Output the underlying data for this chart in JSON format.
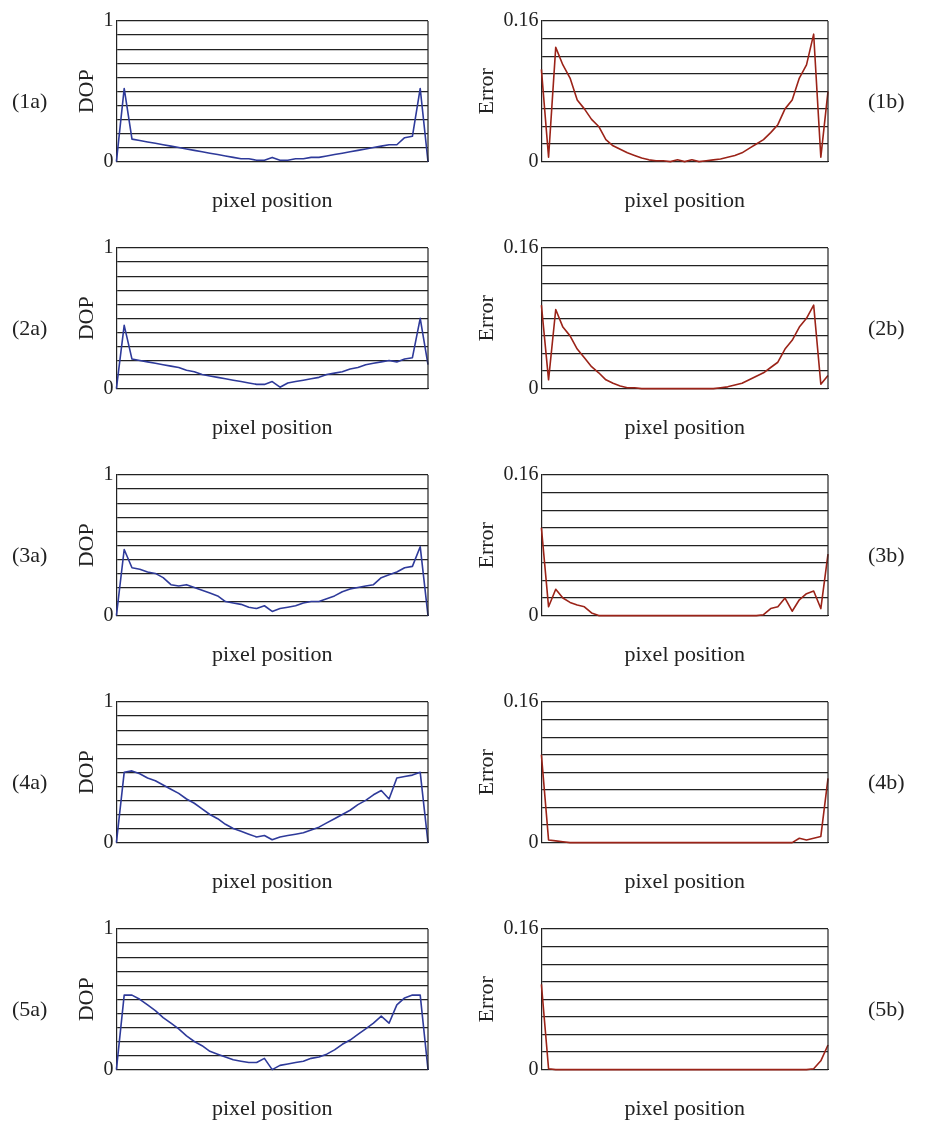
{
  "chart_data": [
    {
      "type": "line",
      "annotations": [
        "(1a)"
      ],
      "xlabel": "pixel position",
      "ylabel": "DOP",
      "categories": [
        null,
        null,
        null,
        null,
        null,
        null,
        null,
        null,
        null,
        null,
        null,
        null,
        null,
        null,
        null,
        null,
        null,
        null,
        null,
        null,
        null,
        null,
        null,
        null,
        null,
        null,
        null,
        null,
        null,
        null,
        null,
        null,
        null,
        null,
        null,
        null,
        null,
        null,
        null,
        null,
        null
      ],
      "color": "#2e3a9a",
      "values": [
        0,
        0.52,
        0.16,
        0.15,
        0.14,
        0.13,
        0.12,
        0.11,
        0.1,
        0.09,
        0.08,
        0.07,
        0.06,
        0.05,
        0.04,
        0.03,
        0.02,
        0.02,
        0.01,
        0.01,
        0.03,
        0.01,
        0.01,
        0.02,
        0.02,
        0.03,
        0.03,
        0.04,
        0.05,
        0.06,
        0.07,
        0.08,
        0.09,
        0.1,
        0.11,
        0.12,
        0.12,
        0.17,
        0.18,
        0.52,
        0
      ],
      "ylim": [
        0,
        1
      ],
      "yticks": [
        0,
        {
          "value": 0.1,
          "label": null
        },
        {
          "value": 0.2,
          "label": null
        },
        {
          "value": 0.3,
          "label": null
        },
        {
          "value": 0.4,
          "label": null
        },
        {
          "value": 0.5,
          "label": null
        },
        {
          "value": 0.6,
          "label": null
        },
        {
          "value": 0.7,
          "label": null
        },
        {
          "value": 0.8,
          "label": null
        },
        {
          "value": 0.9,
          "label": null
        },
        1
      ],
      "grid": "y"
    },
    {
      "type": "line",
      "annotations": [
        "(1b)"
      ],
      "xlabel": "pixel position",
      "ylabel": "Error",
      "categories": [
        null,
        null,
        null,
        null,
        null,
        null,
        null,
        null,
        null,
        null,
        null,
        null,
        null,
        null,
        null,
        null,
        null,
        null,
        null,
        null,
        null,
        null,
        null,
        null,
        null,
        null,
        null,
        null,
        null,
        null,
        null,
        null,
        null,
        null,
        null,
        null,
        null,
        null,
        null,
        null,
        null
      ],
      "color": "#9b2318",
      "values": [
        0.105,
        0.005,
        0.13,
        0.11,
        0.095,
        0.07,
        0.06,
        0.048,
        0.04,
        0.025,
        0.018,
        0.014,
        0.01,
        0.007,
        0.004,
        0.002,
        0.001,
        0.001,
        0,
        0.002,
        0,
        0.002,
        0,
        0.001,
        0.002,
        0.003,
        0.005,
        0.007,
        0.01,
        0.015,
        0.02,
        0.025,
        0.033,
        0.042,
        0.06,
        0.07,
        0.095,
        0.11,
        0.145,
        0.005,
        0.08
      ],
      "ylim": [
        0,
        0.16
      ],
      "yticks": [
        0,
        {
          "value": 0.02,
          "label": null
        },
        {
          "value": 0.04,
          "label": null
        },
        {
          "value": 0.06,
          "label": null
        },
        {
          "value": 0.08,
          "label": null
        },
        {
          "value": 0.1,
          "label": null
        },
        {
          "value": 0.12,
          "label": null
        },
        {
          "value": 0.14,
          "label": null
        },
        0.16
      ],
      "grid": "y"
    },
    {
      "type": "line",
      "annotations": [
        "(2a)"
      ],
      "xlabel": "pixel position",
      "ylabel": "DOP",
      "categories": [
        null,
        null,
        null,
        null,
        null,
        null,
        null,
        null,
        null,
        null,
        null,
        null,
        null,
        null,
        null,
        null,
        null,
        null,
        null,
        null,
        null,
        null,
        null,
        null,
        null,
        null,
        null,
        null,
        null,
        null,
        null,
        null,
        null,
        null,
        null,
        null,
        null,
        null,
        null,
        null,
        null
      ],
      "color": "#2e3a9a",
      "values": [
        0,
        0.45,
        0.21,
        0.2,
        0.19,
        0.18,
        0.17,
        0.16,
        0.15,
        0.13,
        0.12,
        0.1,
        0.09,
        0.08,
        0.07,
        0.06,
        0.05,
        0.04,
        0.03,
        0.03,
        0.05,
        0.01,
        0.04,
        0.05,
        0.06,
        0.07,
        0.08,
        0.1,
        0.11,
        0.12,
        0.14,
        0.15,
        0.17,
        0.18,
        0.19,
        0.2,
        0.19,
        0.21,
        0.22,
        0.5,
        0.17
      ],
      "ylim": [
        0,
        1
      ],
      "yticks": [
        0,
        {
          "value": 0.1,
          "label": null
        },
        {
          "value": 0.2,
          "label": null
        },
        {
          "value": 0.3,
          "label": null
        },
        {
          "value": 0.4,
          "label": null
        },
        {
          "value": 0.5,
          "label": null
        },
        {
          "value": 0.6,
          "label": null
        },
        {
          "value": 0.7,
          "label": null
        },
        {
          "value": 0.8,
          "label": null
        },
        {
          "value": 0.9,
          "label": null
        },
        1
      ],
      "grid": "y"
    },
    {
      "type": "line",
      "annotations": [
        "(2b)"
      ],
      "xlabel": "pixel position",
      "ylabel": "Error",
      "categories": [
        null,
        null,
        null,
        null,
        null,
        null,
        null,
        null,
        null,
        null,
        null,
        null,
        null,
        null,
        null,
        null,
        null,
        null,
        null,
        null,
        null,
        null,
        null,
        null,
        null,
        null,
        null,
        null,
        null,
        null,
        null,
        null,
        null,
        null,
        null,
        null,
        null,
        null,
        null,
        null,
        null
      ],
      "color": "#9b2318",
      "values": [
        0.095,
        0.01,
        0.09,
        0.07,
        0.06,
        0.045,
        0.035,
        0.025,
        0.018,
        0.01,
        0.006,
        0.003,
        0.001,
        0.001,
        0,
        0,
        0,
        0,
        0,
        0,
        0,
        0,
        0,
        0,
        0,
        0.001,
        0.002,
        0.004,
        0.006,
        0.01,
        0.014,
        0.018,
        0.024,
        0.03,
        0.045,
        0.055,
        0.07,
        0.08,
        0.095,
        0.005,
        0.015
      ],
      "ylim": [
        0,
        0.16
      ],
      "yticks": [
        0,
        {
          "value": 0.02,
          "label": null
        },
        {
          "value": 0.04,
          "label": null
        },
        {
          "value": 0.06,
          "label": null
        },
        {
          "value": 0.08,
          "label": null
        },
        {
          "value": 0.1,
          "label": null
        },
        {
          "value": 0.12,
          "label": null
        },
        {
          "value": 0.14,
          "label": null
        },
        0.16
      ],
      "grid": "y"
    },
    {
      "type": "line",
      "annotations": [
        "(3a)"
      ],
      "xlabel": "pixel position",
      "ylabel": "DOP",
      "categories": [
        null,
        null,
        null,
        null,
        null,
        null,
        null,
        null,
        null,
        null,
        null,
        null,
        null,
        null,
        null,
        null,
        null,
        null,
        null,
        null,
        null,
        null,
        null,
        null,
        null,
        null,
        null,
        null,
        null,
        null,
        null,
        null,
        null,
        null,
        null,
        null,
        null,
        null,
        null,
        null,
        null
      ],
      "color": "#2e3a9a",
      "values": [
        0,
        0.47,
        0.34,
        0.33,
        0.31,
        0.3,
        0.27,
        0.22,
        0.21,
        0.22,
        0.2,
        0.18,
        0.16,
        0.14,
        0.1,
        0.09,
        0.08,
        0.06,
        0.05,
        0.07,
        0.03,
        0.05,
        0.06,
        0.07,
        0.09,
        0.1,
        0.1,
        0.12,
        0.14,
        0.17,
        0.19,
        0.2,
        0.21,
        0.22,
        0.27,
        0.29,
        0.31,
        0.34,
        0.35,
        0.49,
        0
      ],
      "ylim": [
        0,
        1
      ],
      "yticks": [
        0,
        {
          "value": 0.1,
          "label": null
        },
        {
          "value": 0.2,
          "label": null
        },
        {
          "value": 0.3,
          "label": null
        },
        {
          "value": 0.4,
          "label": null
        },
        {
          "value": 0.5,
          "label": null
        },
        {
          "value": 0.6,
          "label": null
        },
        {
          "value": 0.7,
          "label": null
        },
        {
          "value": 0.8,
          "label": null
        },
        {
          "value": 0.9,
          "label": null
        },
        1
      ],
      "grid": "y"
    },
    {
      "type": "line",
      "annotations": [
        "(3b)"
      ],
      "xlabel": "pixel position",
      "ylabel": "Error",
      "categories": [
        null,
        null,
        null,
        null,
        null,
        null,
        null,
        null,
        null,
        null,
        null,
        null,
        null,
        null,
        null,
        null,
        null,
        null,
        null,
        null,
        null,
        null,
        null,
        null,
        null,
        null,
        null,
        null,
        null,
        null,
        null,
        null,
        null,
        null,
        null,
        null,
        null,
        null,
        null,
        null,
        null
      ],
      "color": "#9b2318",
      "values": [
        0.1,
        0.01,
        0.03,
        0.02,
        0.015,
        0.012,
        0.01,
        0.003,
        0,
        0,
        0,
        0,
        0,
        0,
        0,
        0,
        0,
        0,
        0,
        0,
        0,
        0,
        0,
        0,
        0,
        0,
        0,
        0,
        0,
        0,
        0,
        0.001,
        0.008,
        0.01,
        0.02,
        0.005,
        0.018,
        0.025,
        0.028,
        0.008,
        0.07
      ],
      "ylim": [
        0,
        0.16
      ],
      "yticks": [
        0,
        {
          "value": 0.02,
          "label": null
        },
        {
          "value": 0.04,
          "label": null
        },
        {
          "value": 0.06,
          "label": null
        },
        {
          "value": 0.08,
          "label": null
        },
        {
          "value": 0.1,
          "label": null
        },
        {
          "value": 0.12,
          "label": null
        },
        {
          "value": 0.14,
          "label": null
        },
        0.16
      ],
      "grid": "y"
    },
    {
      "type": "line",
      "annotations": [
        "(4a)"
      ],
      "xlabel": "pixel position",
      "ylabel": "DOP",
      "categories": [
        null,
        null,
        null,
        null,
        null,
        null,
        null,
        null,
        null,
        null,
        null,
        null,
        null,
        null,
        null,
        null,
        null,
        null,
        null,
        null,
        null,
        null,
        null,
        null,
        null,
        null,
        null,
        null,
        null,
        null,
        null,
        null,
        null,
        null,
        null,
        null,
        null,
        null,
        null,
        null,
        null
      ],
      "color": "#2e3a9a",
      "values": [
        0,
        0.5,
        0.51,
        0.49,
        0.46,
        0.44,
        0.41,
        0.38,
        0.35,
        0.31,
        0.28,
        0.24,
        0.2,
        0.17,
        0.13,
        0.1,
        0.08,
        0.06,
        0.04,
        0.05,
        0.02,
        0.04,
        0.05,
        0.06,
        0.07,
        0.09,
        0.11,
        0.14,
        0.17,
        0.2,
        0.23,
        0.27,
        0.3,
        0.34,
        0.37,
        0.31,
        0.46,
        0.47,
        0.48,
        0.5,
        0
      ],
      "ylim": [
        0,
        1
      ],
      "yticks": [
        0,
        {
          "value": 0.1,
          "label": null
        },
        {
          "value": 0.2,
          "label": null
        },
        {
          "value": 0.3,
          "label": null
        },
        {
          "value": 0.4,
          "label": null
        },
        {
          "value": 0.5,
          "label": null
        },
        {
          "value": 0.6,
          "label": null
        },
        {
          "value": 0.7,
          "label": null
        },
        {
          "value": 0.8,
          "label": null
        },
        {
          "value": 0.9,
          "label": null
        },
        1
      ],
      "grid": "y"
    },
    {
      "type": "line",
      "annotations": [
        "(4b)"
      ],
      "xlabel": "pixel position",
      "ylabel": "Error",
      "categories": [
        null,
        null,
        null,
        null,
        null,
        null,
        null,
        null,
        null,
        null,
        null,
        null,
        null,
        null,
        null,
        null,
        null,
        null,
        null,
        null,
        null,
        null,
        null,
        null,
        null,
        null,
        null,
        null,
        null,
        null,
        null,
        null,
        null,
        null,
        null,
        null,
        null,
        null,
        null,
        null,
        null
      ],
      "color": "#9b2318",
      "values": [
        0.1,
        0.003,
        0.002,
        0.001,
        0,
        0,
        0,
        0,
        0,
        0,
        0,
        0,
        0,
        0,
        0,
        0,
        0,
        0,
        0,
        0,
        0,
        0,
        0,
        0,
        0,
        0,
        0,
        0,
        0,
        0,
        0,
        0,
        0,
        0,
        0,
        0,
        0.005,
        0.003,
        0.005,
        0.007,
        0.073
      ],
      "ylim": [
        0,
        0.16
      ],
      "yticks": [
        0,
        {
          "value": 0.02,
          "label": null
        },
        {
          "value": 0.04,
          "label": null
        },
        {
          "value": 0.06,
          "label": null
        },
        {
          "value": 0.08,
          "label": null
        },
        {
          "value": 0.1,
          "label": null
        },
        {
          "value": 0.12,
          "label": null
        },
        {
          "value": 0.14,
          "label": null
        },
        0.16
      ],
      "grid": "y"
    },
    {
      "type": "line",
      "annotations": [
        "(5a)"
      ],
      "xlabel": "pixel position",
      "ylabel": "DOP",
      "categories": [
        null,
        null,
        null,
        null,
        null,
        null,
        null,
        null,
        null,
        null,
        null,
        null,
        null,
        null,
        null,
        null,
        null,
        null,
        null,
        null,
        null,
        null,
        null,
        null,
        null,
        null,
        null,
        null,
        null,
        null,
        null,
        null,
        null,
        null,
        null,
        null,
        null,
        null,
        null,
        null,
        null
      ],
      "color": "#2e3a9a",
      "values": [
        0,
        0.53,
        0.53,
        0.5,
        0.46,
        0.42,
        0.37,
        0.33,
        0.29,
        0.24,
        0.2,
        0.17,
        0.13,
        0.11,
        0.09,
        0.07,
        0.06,
        0.05,
        0.05,
        0.08,
        0,
        0.03,
        0.04,
        0.05,
        0.06,
        0.08,
        0.09,
        0.11,
        0.14,
        0.18,
        0.21,
        0.25,
        0.29,
        0.33,
        0.38,
        0.33,
        0.46,
        0.51,
        0.53,
        0.53,
        0
      ],
      "ylim": [
        0,
        1
      ],
      "yticks": [
        0,
        {
          "value": 0.1,
          "label": null
        },
        {
          "value": 0.2,
          "label": null
        },
        {
          "value": 0.3,
          "label": null
        },
        {
          "value": 0.4,
          "label": null
        },
        {
          "value": 0.5,
          "label": null
        },
        {
          "value": 0.6,
          "label": null
        },
        {
          "value": 0.7,
          "label": null
        },
        {
          "value": 0.8,
          "label": null
        },
        {
          "value": 0.9,
          "label": null
        },
        1
      ],
      "grid": "y"
    },
    {
      "type": "line",
      "annotations": [
        "(5b)"
      ],
      "xlabel": "pixel position",
      "ylabel": "Error",
      "categories": [
        null,
        null,
        null,
        null,
        null,
        null,
        null,
        null,
        null,
        null,
        null,
        null,
        null,
        null,
        null,
        null,
        null,
        null,
        null,
        null,
        null,
        null,
        null,
        null,
        null,
        null,
        null,
        null,
        null,
        null,
        null,
        null,
        null,
        null,
        null,
        null,
        null,
        null,
        null,
        null,
        null
      ],
      "color": "#9b2318",
      "values": [
        0.097,
        0.001,
        0,
        0,
        0,
        0,
        0,
        0,
        0,
        0,
        0,
        0,
        0,
        0,
        0,
        0,
        0,
        0,
        0,
        0,
        0,
        0,
        0,
        0,
        0,
        0,
        0,
        0,
        0,
        0,
        0,
        0,
        0,
        0,
        0,
        0,
        0,
        0,
        0.001,
        0.01,
        0.028
      ],
      "ylim": [
        0,
        0.16
      ],
      "yticks": [
        0,
        {
          "value": 0.02,
          "label": null
        },
        {
          "value": 0.04,
          "label": null
        },
        {
          "value": 0.06,
          "label": null
        },
        {
          "value": 0.08,
          "label": null
        },
        {
          "value": 0.1,
          "label": null
        },
        {
          "value": 0.12,
          "label": null
        },
        {
          "value": 0.14,
          "label": null
        },
        0.16
      ],
      "grid": "y"
    }
  ]
}
